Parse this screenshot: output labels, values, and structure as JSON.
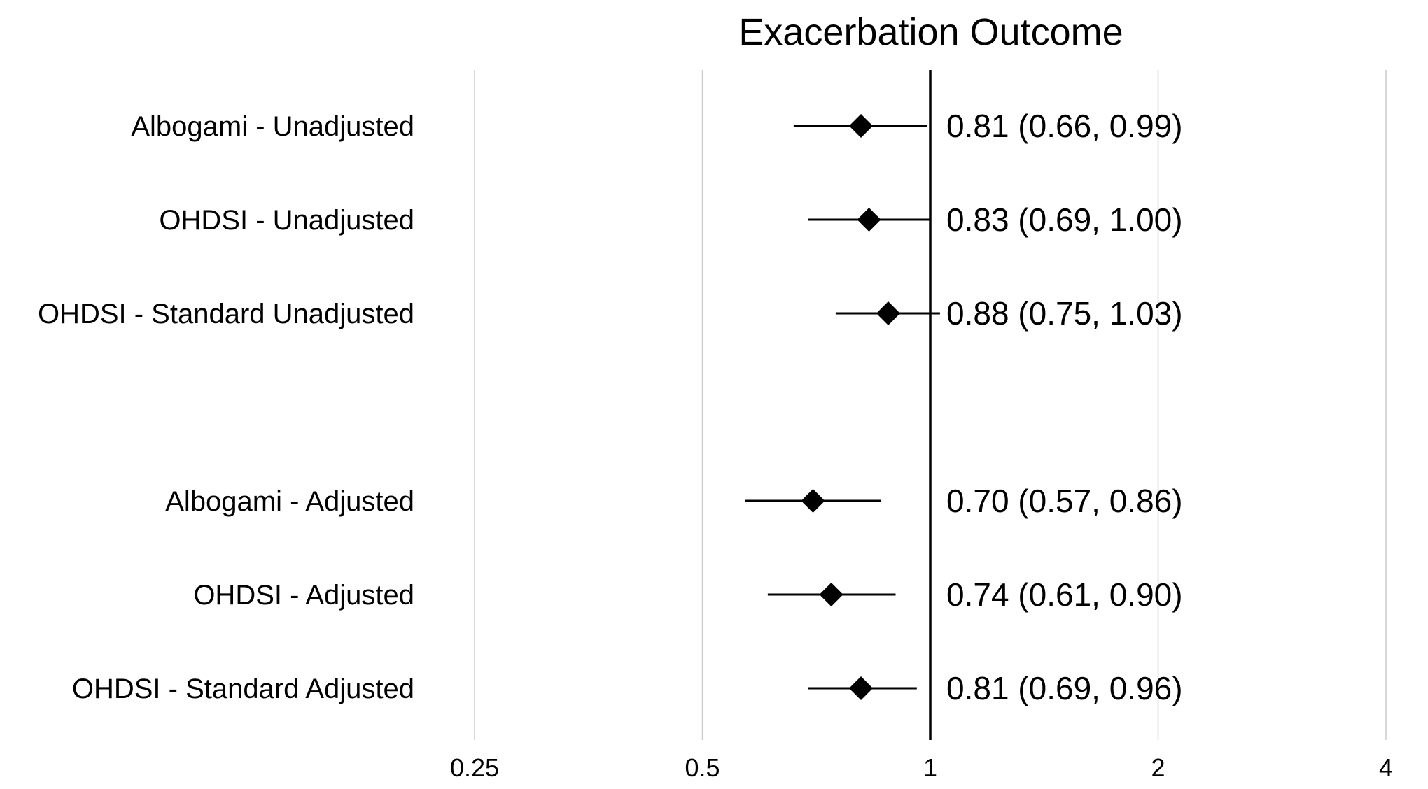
{
  "chart_data": {
    "type": "forest",
    "title": "Exacerbation Outcome",
    "x_scale": "log2",
    "xlim": [
      0.25,
      4
    ],
    "x_ticks": [
      {
        "value": 0.25,
        "label": "0.25"
      },
      {
        "value": 0.5,
        "label": "0.5"
      },
      {
        "value": 1,
        "label": "1"
      },
      {
        "value": 2,
        "label": "2"
      },
      {
        "value": 4,
        "label": "4"
      }
    ],
    "reference_line": 1,
    "grid": "vertical",
    "rows": [
      {
        "label": "Albogami - Unadjusted",
        "estimate": 0.81,
        "lower": 0.66,
        "upper": 0.99,
        "text": "0.81 (0.66, 0.99)"
      },
      {
        "label": "OHDSI - Unadjusted",
        "estimate": 0.83,
        "lower": 0.69,
        "upper": 1.0,
        "text": "0.83 (0.69, 1.00)"
      },
      {
        "label": "OHDSI - Standard Unadjusted",
        "estimate": 0.88,
        "lower": 0.75,
        "upper": 1.03,
        "text": "0.88 (0.75, 1.03)"
      },
      {
        "label": "Albogami - Adjusted",
        "estimate": 0.7,
        "lower": 0.57,
        "upper": 0.86,
        "text": "0.70 (0.57, 0.86)"
      },
      {
        "label": "OHDSI - Adjusted",
        "estimate": 0.74,
        "lower": 0.61,
        "upper": 0.9,
        "text": "0.74 (0.61, 0.90)"
      },
      {
        "label": "OHDSI - Standard Adjusted",
        "estimate": 0.81,
        "lower": 0.69,
        "upper": 0.96,
        "text": "0.81 (0.69, 0.96)"
      }
    ]
  }
}
